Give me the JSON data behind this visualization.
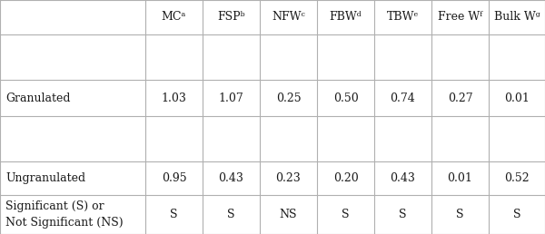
{
  "columns": [
    "MCᵃ",
    "FSPᵇ",
    "NFWᶜ",
    "FBWᵈ",
    "TBWᵉ",
    "Free Wᶠ",
    "Bulk Wᵍ"
  ],
  "rows": [
    {
      "label": "Granulated",
      "values": [
        "1.03",
        "1.07",
        "0.25",
        "0.50",
        "0.74",
        "0.27",
        "0.01"
      ]
    },
    {
      "label": "Ungranulated",
      "values": [
        "0.95",
        "0.43",
        "0.23",
        "0.20",
        "0.43",
        "0.01",
        "0.52"
      ]
    },
    {
      "label": "Significant (S) or\nNot Significant (NS)",
      "values": [
        "S",
        "S",
        "NS",
        "S",
        "S",
        "S",
        "S"
      ]
    }
  ],
  "background_color": "#ffffff",
  "line_color": "#b0b0b0",
  "text_color": "#1a1a1a",
  "font_size": 9.0
}
